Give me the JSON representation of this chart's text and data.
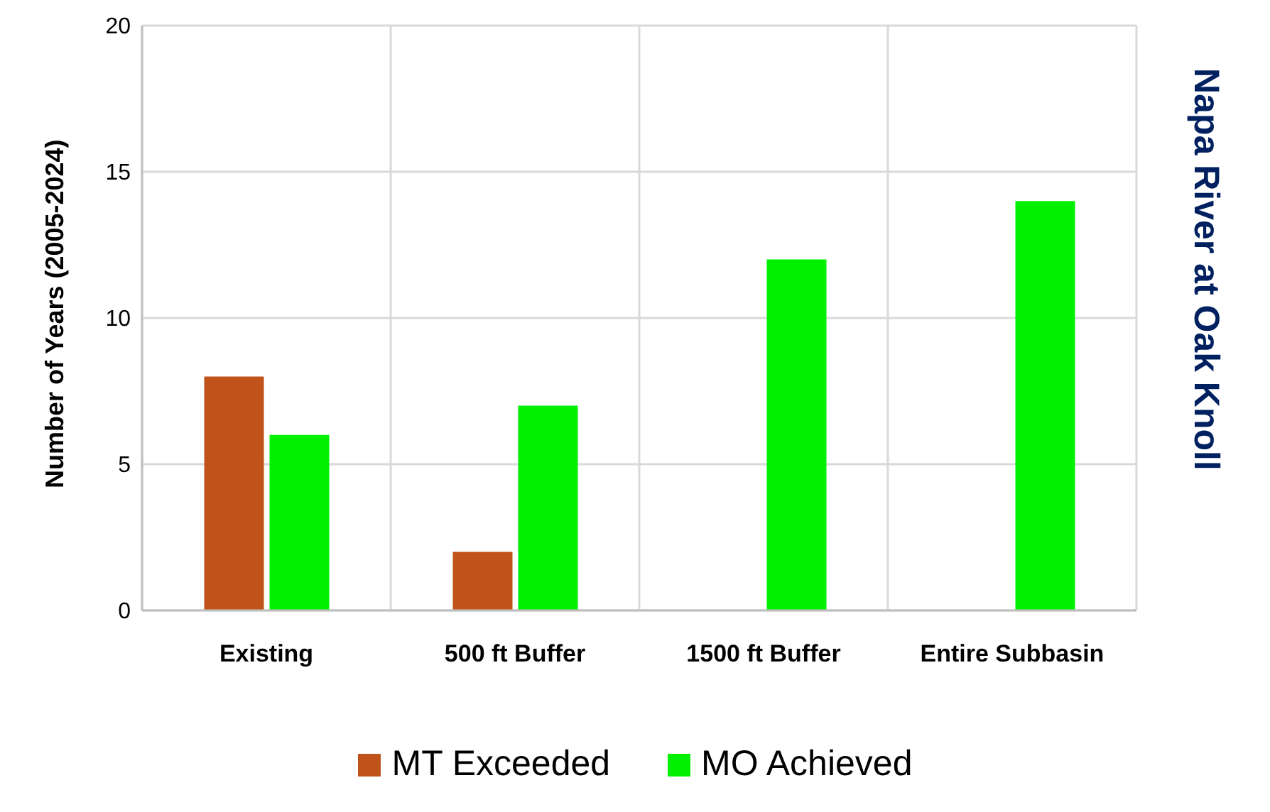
{
  "chart_data": {
    "type": "bar",
    "title": "Napa River at Oak Knoll",
    "ylabel": "Number of Years (2005-2024)",
    "categories": [
      "Existing",
      "500 ft Buffer",
      "1500 ft Buffer",
      "Entire Subbasin"
    ],
    "series": [
      {
        "name": "MT Exceeded",
        "color": "#c0531a",
        "values": [
          8,
          2,
          0,
          0
        ]
      },
      {
        "name": "MO Achieved",
        "color": "#00f000",
        "values": [
          6,
          7,
          12,
          14
        ]
      }
    ],
    "ylim": [
      0,
      20
    ],
    "yticks": [
      0,
      5,
      10,
      15,
      20
    ],
    "grid": true,
    "legend": "bottom"
  }
}
